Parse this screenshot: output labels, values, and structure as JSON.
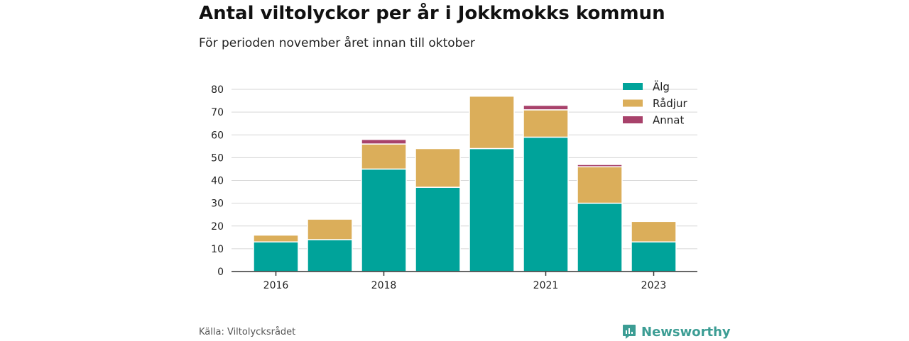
{
  "title": "Antal viltolyckor per år i Jokkmokks kommun",
  "subtitle": "För perioden november året innan till oktober",
  "source": "Källa: Viltolycksrådet",
  "brand": {
    "name": "Newsworthy",
    "icon": "newsworthy-logo-icon",
    "color": "#3c9d94"
  },
  "chart_data": {
    "type": "bar",
    "stacked": true,
    "categories": [
      "2016",
      "2017",
      "2018",
      "2019",
      "2020",
      "2021",
      "2022",
      "2023"
    ],
    "x_tick_labels": [
      "2016",
      "",
      "2018",
      "",
      "",
      "2021",
      "",
      "2023"
    ],
    "series": [
      {
        "name": "Älg",
        "color": "#00a39a",
        "values": [
          13,
          14,
          45,
          37,
          54,
          59,
          30,
          13
        ]
      },
      {
        "name": "Rådjur",
        "color": "#dbae5a",
        "values": [
          3,
          9,
          11,
          17,
          23,
          12,
          16,
          9
        ]
      },
      {
        "name": "Annat",
        "color": "#a8426b",
        "values": [
          0,
          0,
          2,
          0,
          0,
          2,
          1,
          0
        ]
      }
    ],
    "ylim": [
      0,
      80
    ],
    "yticks": [
      0,
      10,
      20,
      30,
      40,
      50,
      60,
      70,
      80
    ],
    "grid": true,
    "legend": "top-right"
  }
}
